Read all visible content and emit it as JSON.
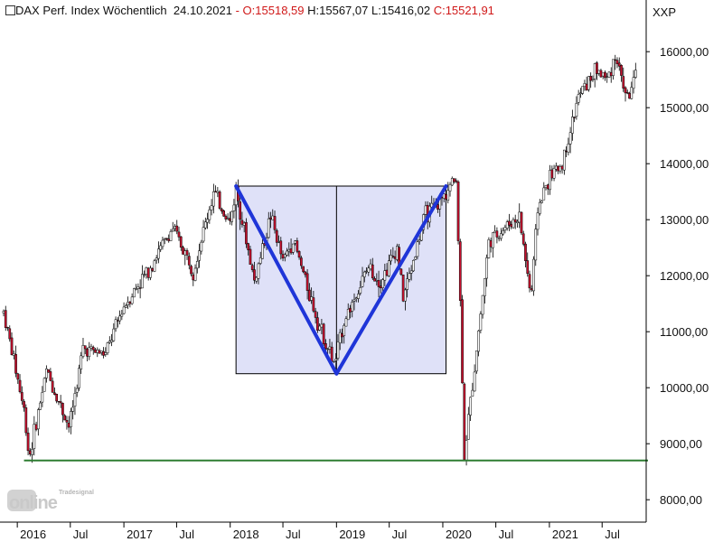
{
  "header": {
    "instrument": "DAX Perf. Index Wöchentlich",
    "date": "24.10.2021",
    "sep": "-",
    "open": "O:15518,59",
    "high": "H:15567,07",
    "low": "L:15416,02",
    "close": "C:15521,91",
    "currency": "XXP"
  },
  "logo": {
    "small": "Tradesignal",
    "main": "online"
  },
  "colors": {
    "bull": "#ffffff",
    "bear": "#c8102e",
    "wick": "#000000",
    "support": "#2e7d32",
    "pattern_line": "#1f35d8",
    "pattern_fill": "#dfe1f8"
  },
  "chart_data": {
    "type": "candlestick",
    "title": "DAX Perf. Index Wöchentlich",
    "ylim": [
      7600,
      16600
    ],
    "y_ticks": [
      "16000,00",
      "15000,00",
      "14000,00",
      "13000,00",
      "12000,00",
      "11000,00",
      "10000,00",
      "9000,00",
      "8000,00"
    ],
    "x_ticks": [
      "2016",
      "Jul",
      "2017",
      "Jul",
      "2018",
      "Jul",
      "2019",
      "Jul",
      "2020",
      "Jul",
      "2021",
      "Jul"
    ],
    "x_range": [
      "2015-11-15",
      "2021-11-20"
    ],
    "support_level": 8700,
    "annotations": {
      "box": {
        "x": [
          "2018-01-21",
          "2020-01-12"
        ],
        "y": [
          10250,
          13600
        ]
      },
      "v_pattern": [
        {
          "date": "2018-01-21",
          "value": 13600
        },
        {
          "date": "2019-01-01",
          "value": 10250
        },
        {
          "date": "2020-01-12",
          "value": 13600
        }
      ],
      "mid_line": "2019-01-01"
    },
    "anchors": [
      [
        "2015-11-15",
        11350
      ],
      [
        "2015-12-20",
        10500
      ],
      [
        "2016-01-24",
        9600
      ],
      [
        "2016-02-11",
        8750
      ],
      [
        "2016-04-10",
        10300
      ],
      [
        "2016-06-27",
        9300
      ],
      [
        "2016-08-14",
        10700
      ],
      [
        "2016-10-30",
        10600
      ],
      [
        "2016-12-31",
        11450
      ],
      [
        "2017-03-19",
        12050
      ],
      [
        "2017-06-18",
        12850
      ],
      [
        "2017-08-27",
        12100
      ],
      [
        "2017-11-05",
        13480
      ],
      [
        "2017-12-31",
        12950
      ],
      [
        "2018-01-21",
        13550
      ],
      [
        "2018-03-25",
        11900
      ],
      [
        "2018-05-20",
        13080
      ],
      [
        "2018-07-01",
        12250
      ],
      [
        "2018-08-05",
        12650
      ],
      [
        "2018-10-28",
        11200
      ],
      [
        "2018-12-25",
        10400
      ],
      [
        "2019-01-27",
        11200
      ],
      [
        "2019-04-21",
        12150
      ],
      [
        "2019-06-02",
        11900
      ],
      [
        "2019-07-28",
        12500
      ],
      [
        "2019-08-18",
        11600
      ],
      [
        "2019-11-03",
        13100
      ],
      [
        "2019-12-08",
        13200
      ],
      [
        "2020-01-19",
        13550
      ],
      [
        "2020-02-16",
        13750
      ],
      [
        "2020-02-28",
        11900
      ],
      [
        "2020-03-15",
        8800
      ],
      [
        "2020-04-26",
        10700
      ],
      [
        "2020-06-07",
        12600
      ],
      [
        "2020-08-09",
        12900
      ],
      [
        "2020-09-20",
        13050
      ],
      [
        "2020-10-30",
        11600
      ],
      [
        "2020-11-22",
        13200
      ],
      [
        "2020-12-31",
        13750
      ],
      [
        "2021-02-14",
        14000
      ],
      [
        "2021-04-11",
        15200
      ],
      [
        "2021-06-13",
        15700
      ],
      [
        "2021-07-18",
        15500
      ],
      [
        "2021-08-15",
        15950
      ],
      [
        "2021-09-26",
        15150
      ],
      [
        "2021-10-24",
        15520
      ]
    ]
  }
}
